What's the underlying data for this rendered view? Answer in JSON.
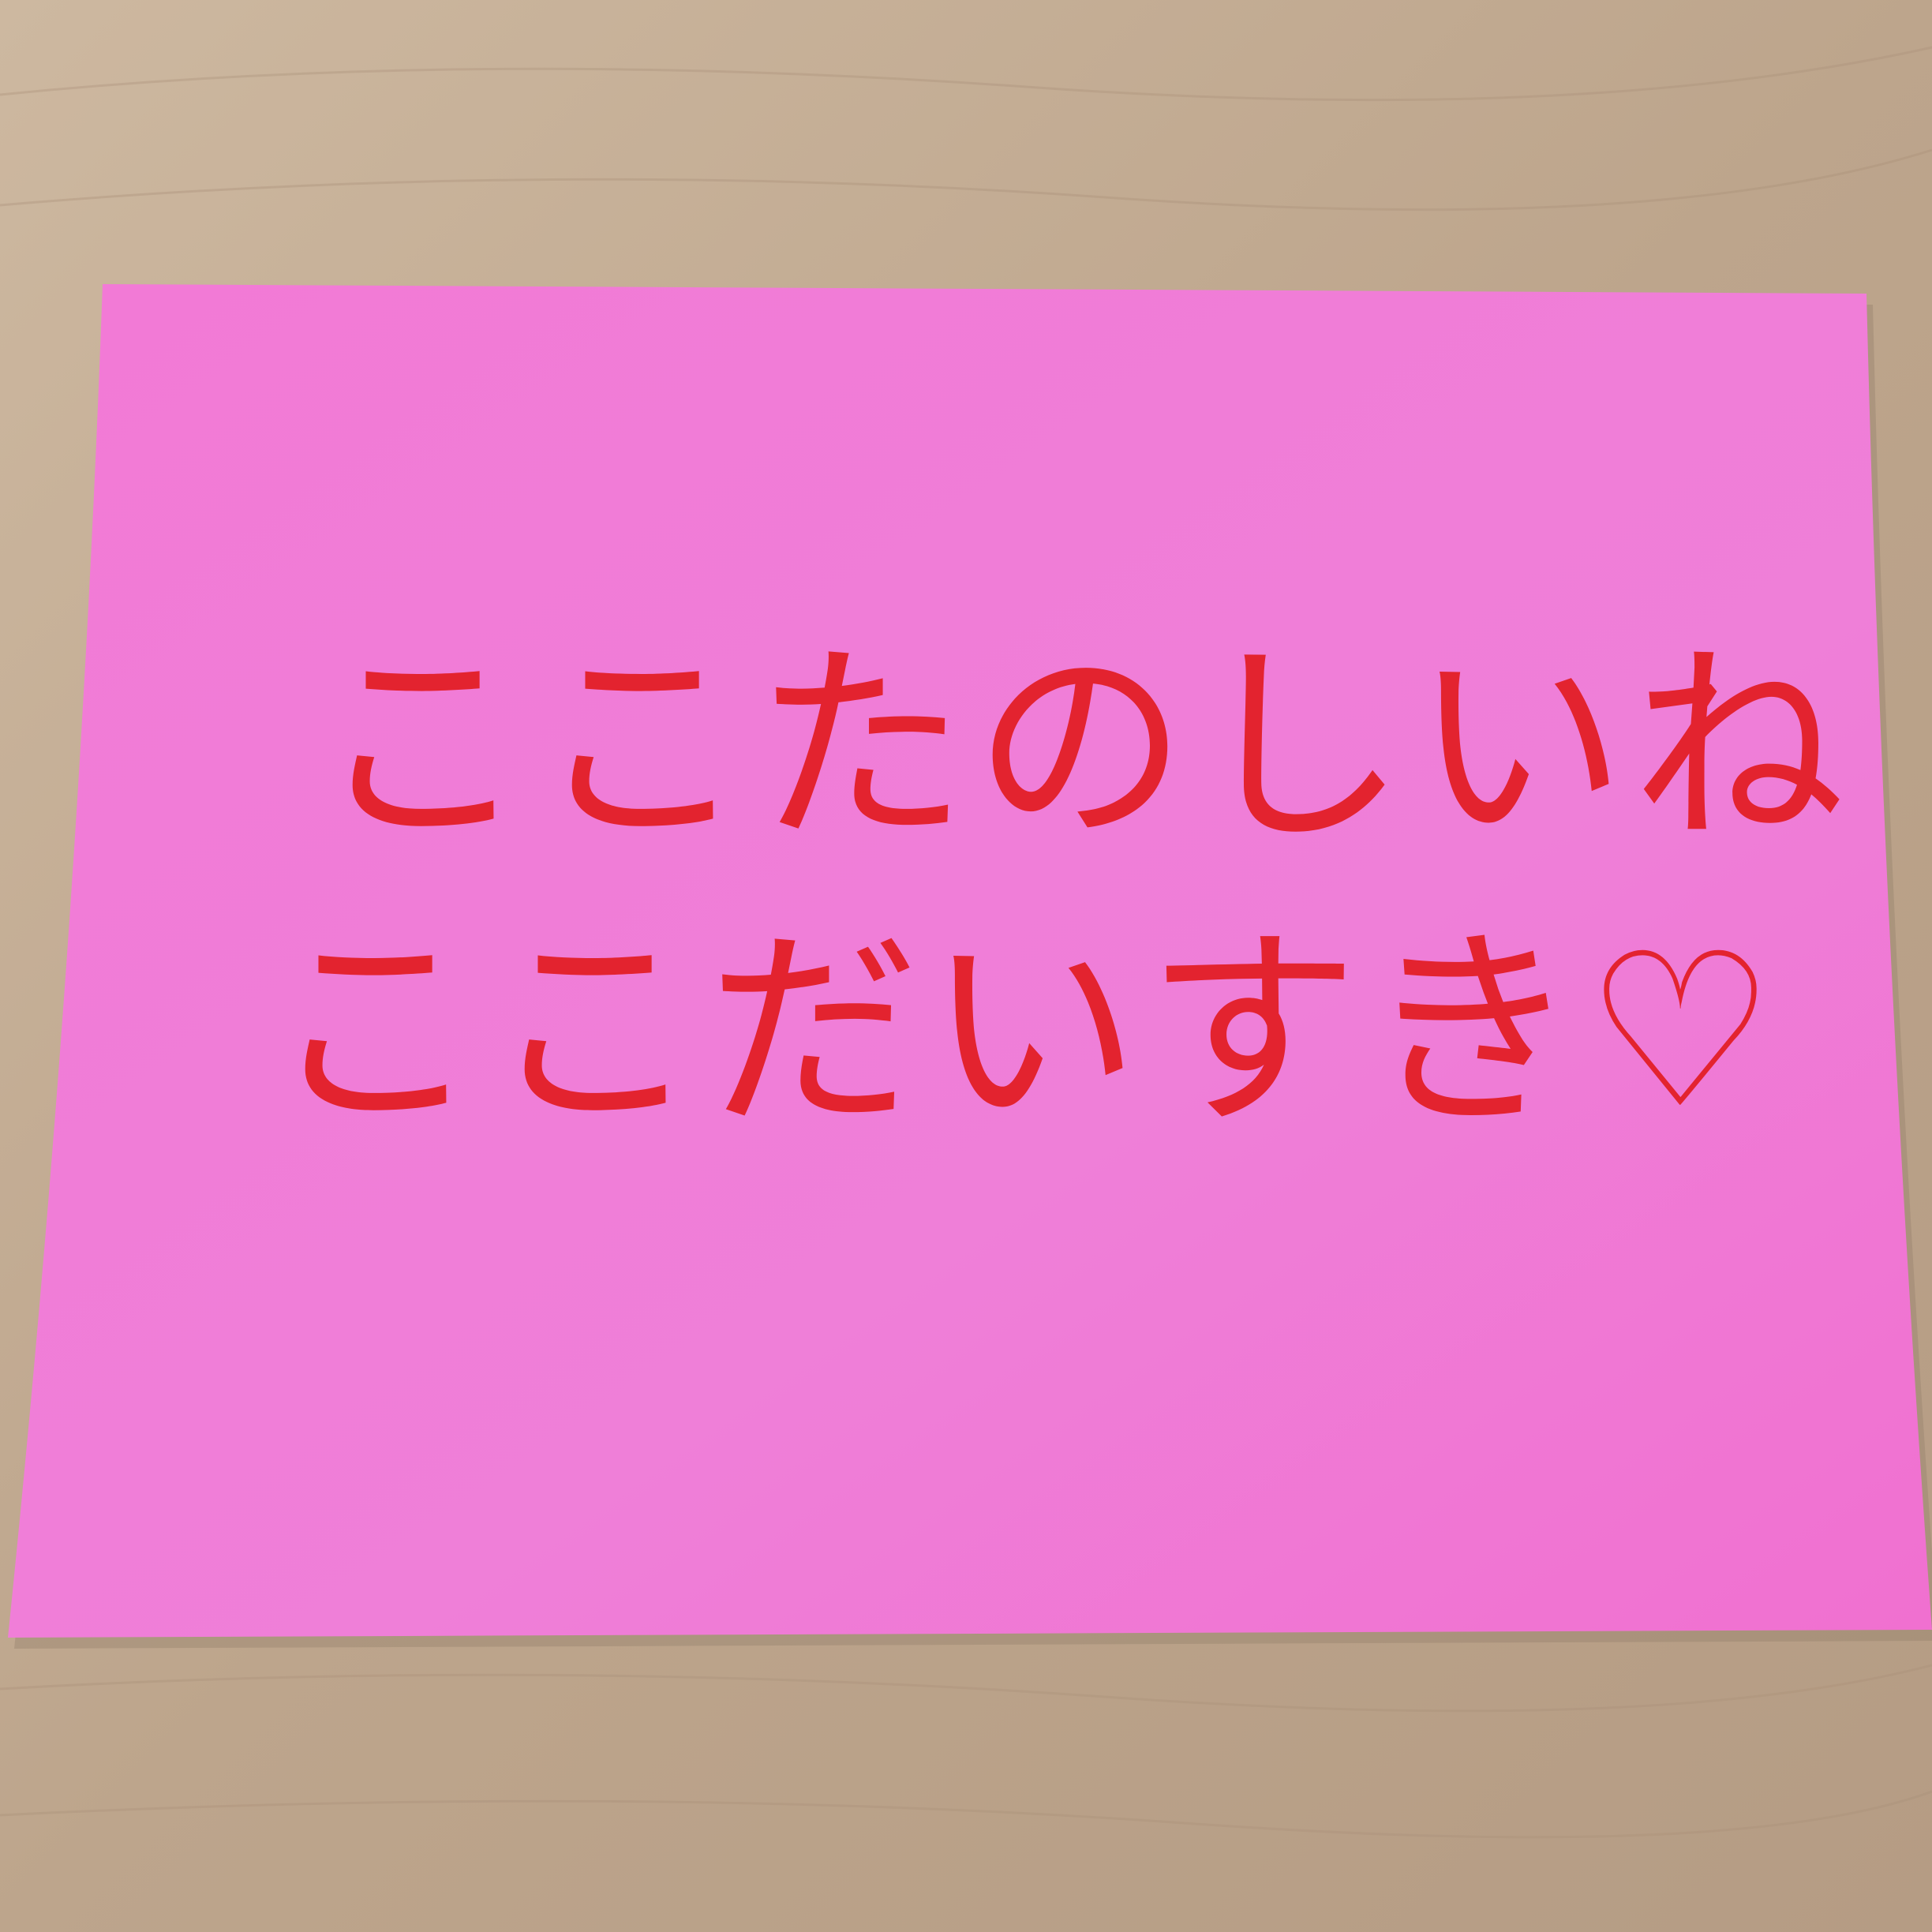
{
  "note": {
    "lines": [
      "ここたのしいね",
      "ここだいすき♡"
    ]
  }
}
